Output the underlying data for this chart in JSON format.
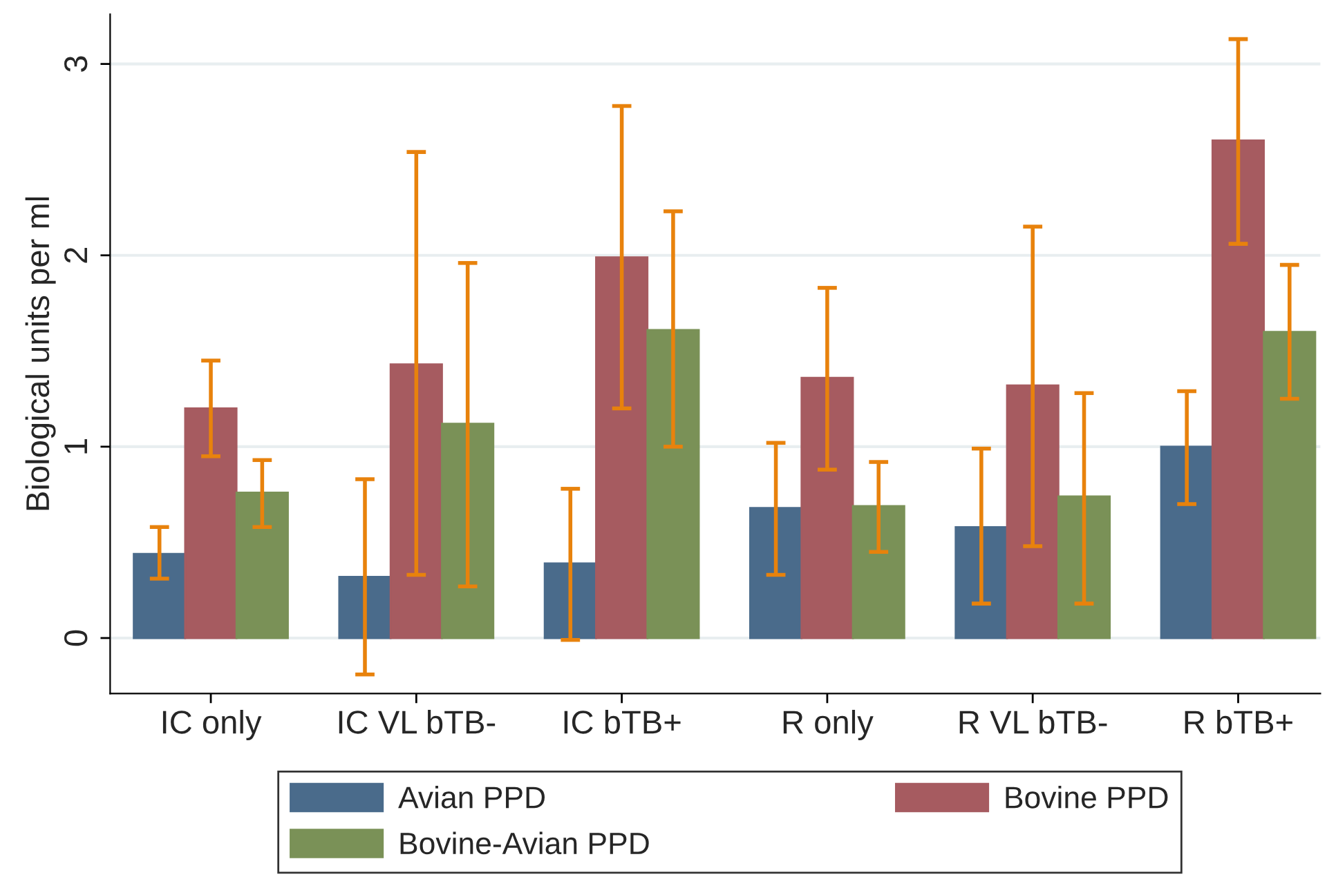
{
  "chart_data": {
    "type": "bar",
    "ylabel": "Biological units per ml",
    "categories": [
      "IC only",
      "IC VL bTB-",
      "IC bTB+",
      "R only",
      "R VL bTB-",
      "R bTB+"
    ],
    "series": [
      {
        "name": "Avian PPD",
        "color": "#4a6b8b",
        "values": [
          0.44,
          0.32,
          0.39,
          0.68,
          0.58,
          1.0
        ],
        "errors": [
          [
            0.31,
            0.58
          ],
          [
            -0.19,
            0.83
          ],
          [
            -0.01,
            0.78
          ],
          [
            0.33,
            1.02
          ],
          [
            0.18,
            0.99
          ],
          [
            0.7,
            1.29
          ]
        ]
      },
      {
        "name": "Bovine PPD",
        "color": "#a65b60",
        "values": [
          1.2,
          1.43,
          1.99,
          1.36,
          1.32,
          2.6
        ],
        "errors": [
          [
            0.95,
            1.45
          ],
          [
            0.33,
            2.54
          ],
          [
            1.2,
            2.78
          ],
          [
            0.88,
            1.83
          ],
          [
            0.48,
            2.15
          ],
          [
            2.06,
            3.13
          ]
        ]
      },
      {
        "name": "Bovine-Avian PPD",
        "color": "#7a9157",
        "values": [
          0.76,
          1.12,
          1.61,
          0.69,
          0.74,
          1.6
        ],
        "errors": [
          [
            0.58,
            0.93
          ],
          [
            0.27,
            1.96
          ],
          [
            1.0,
            2.23
          ],
          [
            0.45,
            0.92
          ],
          [
            0.18,
            1.28
          ],
          [
            1.25,
            1.95
          ]
        ]
      }
    ],
    "ylim": [
      -0.29,
      3.26
    ],
    "yticks": [
      0,
      1,
      2,
      3
    ],
    "grid": "y",
    "legend": "bottom"
  }
}
